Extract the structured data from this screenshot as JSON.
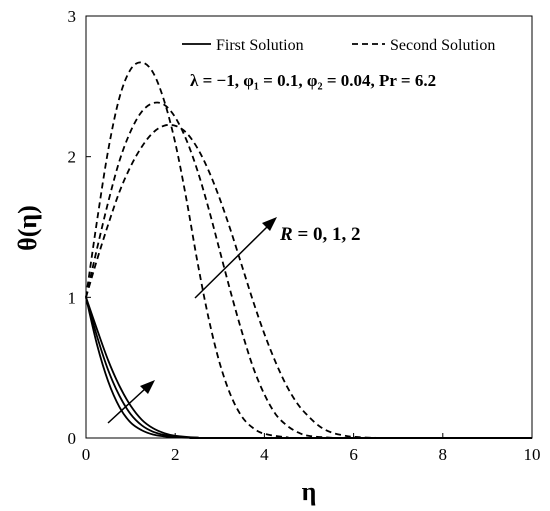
{
  "chart_data": {
    "type": "line",
    "title": "",
    "xlabel": "η",
    "ylabel": "θ(η)",
    "xlim": [
      0,
      10
    ],
    "ylim": [
      0,
      3
    ],
    "xticks": [
      "0",
      "2",
      "4",
      "6",
      "8",
      "10"
    ],
    "yticks": [
      "0",
      "1",
      "2",
      "3"
    ],
    "grid": false,
    "legend": {
      "placement": "top",
      "entries": [
        {
          "name": "First Solution",
          "style": "solid"
        },
        {
          "name": "Second Solution",
          "style": "dashed"
        }
      ]
    },
    "annotations": {
      "params": "λ = −1, φ₁ = 0.1, φ₂ = 0.04, Pr = 6.2",
      "R_label": "R = 0, 1, 2",
      "R_var": "R",
      "R_values": " = 0, 1, 2"
    },
    "series": [
      {
        "name": "First Solution",
        "R": 0,
        "style": "solid",
        "x": [
          0,
          0.25,
          0.5,
          0.75,
          1.0,
          1.25,
          1.5,
          1.75,
          2.0,
          2.5,
          3.0,
          10
        ],
        "y": [
          1.0,
          0.66,
          0.4,
          0.22,
          0.11,
          0.055,
          0.025,
          0.012,
          0.005,
          0.001,
          0.0,
          0.0
        ]
      },
      {
        "name": "First Solution",
        "R": 1,
        "style": "solid",
        "x": [
          0,
          0.25,
          0.5,
          0.75,
          1.0,
          1.25,
          1.5,
          1.75,
          2.0,
          2.5,
          3.0,
          10
        ],
        "y": [
          1.0,
          0.72,
          0.48,
          0.3,
          0.17,
          0.09,
          0.045,
          0.022,
          0.01,
          0.002,
          0.0,
          0.0
        ]
      },
      {
        "name": "First Solution",
        "R": 2,
        "style": "solid",
        "x": [
          0,
          0.25,
          0.5,
          0.75,
          1.0,
          1.25,
          1.5,
          1.75,
          2.0,
          2.5,
          3.0,
          10
        ],
        "y": [
          1.0,
          0.77,
          0.55,
          0.37,
          0.23,
          0.13,
          0.07,
          0.035,
          0.016,
          0.003,
          0.0,
          0.0
        ]
      },
      {
        "name": "Second Solution",
        "R": 0,
        "style": "dashed",
        "x": [
          0,
          0.25,
          0.5,
          0.75,
          1.0,
          1.25,
          1.5,
          1.75,
          2.0,
          2.25,
          2.5,
          2.75,
          3.0,
          3.25,
          3.5,
          3.75,
          4.0,
          4.5,
          5.0,
          10
        ],
        "y": [
          1.0,
          1.55,
          2.05,
          2.42,
          2.62,
          2.67,
          2.6,
          2.4,
          2.1,
          1.7,
          1.25,
          0.85,
          0.53,
          0.3,
          0.15,
          0.07,
          0.03,
          0.005,
          0.0,
          0.0
        ]
      },
      {
        "name": "Second Solution",
        "R": 1,
        "style": "dashed",
        "x": [
          0,
          0.25,
          0.5,
          0.75,
          1.0,
          1.25,
          1.5,
          1.75,
          2.0,
          2.25,
          2.5,
          2.75,
          3.0,
          3.25,
          3.5,
          3.75,
          4.0,
          4.25,
          4.5,
          4.75,
          5.0,
          5.5,
          6.0,
          10
        ],
        "y": [
          1.0,
          1.35,
          1.68,
          1.97,
          2.18,
          2.32,
          2.38,
          2.37,
          2.28,
          2.12,
          1.9,
          1.63,
          1.33,
          1.03,
          0.75,
          0.5,
          0.31,
          0.17,
          0.09,
          0.04,
          0.015,
          0.002,
          0.0,
          0.0
        ]
      },
      {
        "name": "Second Solution",
        "R": 2,
        "style": "dashed",
        "x": [
          0,
          0.25,
          0.5,
          0.75,
          1.0,
          1.25,
          1.5,
          1.75,
          2.0,
          2.25,
          2.5,
          2.75,
          3.0,
          3.25,
          3.5,
          3.75,
          4.0,
          4.25,
          4.5,
          4.75,
          5.0,
          5.25,
          5.5,
          5.75,
          6.0,
          6.5,
          7.0,
          10
        ],
        "y": [
          1.0,
          1.27,
          1.52,
          1.75,
          1.93,
          2.07,
          2.17,
          2.22,
          2.22,
          2.17,
          2.06,
          1.9,
          1.7,
          1.47,
          1.22,
          0.97,
          0.74,
          0.54,
          0.37,
          0.24,
          0.15,
          0.08,
          0.04,
          0.02,
          0.008,
          0.001,
          0.0,
          0.0
        ]
      }
    ]
  }
}
